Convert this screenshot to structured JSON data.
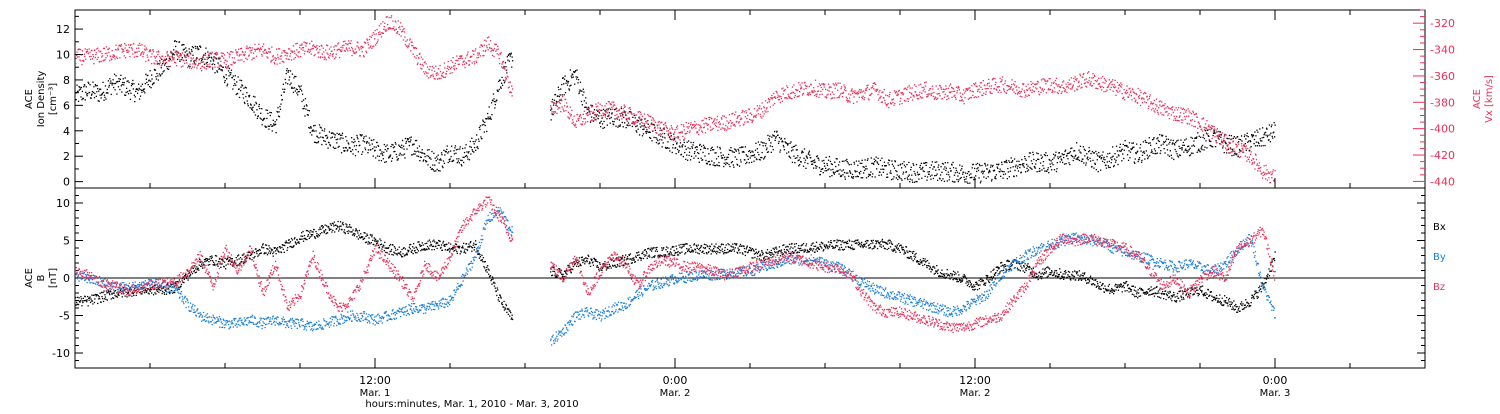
{
  "figure": {
    "xlabel": "hours:minutes, Mar.  1, 2010 - Mar.  3, 2010",
    "x_ticks": [
      {
        "time": "12:00",
        "date": "Mar. 1",
        "hours": 36
      },
      {
        "time": "0:00",
        "date": "Mar. 2",
        "hours": 48
      },
      {
        "time": "12:00",
        "date": "Mar. 2",
        "hours": 60
      },
      {
        "time": "0:00",
        "date": "Mar. 3",
        "hours": 72
      }
    ]
  },
  "colors": {
    "black": "#000000",
    "blue": "#1a7fd8",
    "pink": "#e8305a",
    "frame": "#000000"
  },
  "chart_data": [
    {
      "type": "scatter",
      "panel": "top",
      "title": "",
      "x_unit": "hours since Feb. 28, 2010 0:00 UT",
      "xlim": [
        24,
        78
      ],
      "left_axis": {
        "label_lines": [
          "ACE",
          "Ion Density",
          "[cm⁻³]"
        ],
        "ylim": [
          -0.5,
          13.5
        ],
        "ticks": [
          0,
          2,
          4,
          6,
          8,
          10,
          12
        ]
      },
      "right_axis": {
        "label_lines": [
          "ACE",
          "Vx [km/s]"
        ],
        "ylim": [
          -445,
          -310
        ],
        "ticks": [
          -320,
          -340,
          -360,
          -380,
          -400,
          -420,
          -440
        ]
      },
      "series": [
        {
          "name": "Ion Density",
          "axis": "left",
          "color": "#000000",
          "x": [
            24,
            24.5,
            25,
            25.5,
            26,
            26.5,
            27,
            27.5,
            28,
            28.5,
            29,
            29.5,
            30,
            30.5,
            31,
            31.5,
            32,
            32.5,
            33,
            33.5,
            34,
            34.5,
            35,
            35.5,
            36,
            36.5,
            37,
            37.5,
            38,
            38.5,
            39,
            39.5,
            40,
            40.5,
            41,
            41.5,
            42,
            42.5,
            43,
            43.5,
            44,
            44.5,
            45,
            45.5,
            46,
            46.5,
            47,
            47.5,
            48,
            48.5,
            49,
            49.5,
            50,
            50.5,
            51,
            51.5,
            52,
            52.5,
            53,
            53.5,
            54,
            54.5,
            55,
            55.5,
            56,
            56.5,
            57,
            57.5,
            58,
            58.5,
            59,
            59.5,
            60,
            60.5,
            61,
            61.5,
            62,
            62.5,
            63,
            63.5,
            64,
            64.5,
            65,
            65.5,
            66,
            66.5,
            67,
            67.5,
            68,
            68.5,
            69,
            69.5,
            70,
            70.5,
            71,
            71.5,
            72
          ],
          "values": [
            6.8,
            7.2,
            7.0,
            7.8,
            7.5,
            7.0,
            8.2,
            9.0,
            10.5,
            9.8,
            10.2,
            9.5,
            8.5,
            7.5,
            6.5,
            5.2,
            4.5,
            8.5,
            7.0,
            4.0,
            3.5,
            3.2,
            2.8,
            3.0,
            2.5,
            2.2,
            2.5,
            3.0,
            2.0,
            1.5,
            2.5,
            2.0,
            3.0,
            5.0,
            8.0,
            10.0,
            null,
            null,
            5.5,
            7.5,
            8.5,
            5.5,
            5.0,
            5.2,
            5.0,
            4.5,
            4.0,
            3.5,
            3.0,
            2.5,
            2.3,
            2.1,
            2.0,
            1.9,
            2.2,
            2.5,
            3.5,
            2.5,
            2.0,
            1.5,
            1.3,
            1.1,
            1.0,
            1.1,
            1.2,
            1.0,
            0.9,
            0.8,
            0.8,
            0.9,
            0.8,
            0.7,
            0.7,
            0.8,
            0.9,
            1.2,
            1.5,
            1.6,
            1.5,
            1.8,
            2.5,
            2.0,
            1.5,
            2.0,
            2.5,
            2.2,
            2.8,
            3.0,
            2.5,
            2.8,
            3.2,
            3.5,
            3.0,
            2.8,
            3.2,
            3.5,
            4.0
          ]
        },
        {
          "name": "Vx",
          "axis": "right",
          "color": "#e8305a",
          "x": [
            24,
            24.5,
            25,
            25.5,
            26,
            26.5,
            27,
            27.5,
            28,
            28.5,
            29,
            29.5,
            30,
            30.5,
            31,
            31.5,
            32,
            32.5,
            33,
            33.5,
            34,
            34.5,
            35,
            35.5,
            36,
            36.5,
            37,
            37.5,
            38,
            38.5,
            39,
            39.5,
            40,
            40.5,
            41,
            41.5,
            42,
            42.5,
            43,
            43.5,
            44,
            44.5,
            45,
            45.5,
            46,
            46.5,
            47,
            47.5,
            48,
            48.5,
            49,
            49.5,
            50,
            50.5,
            51,
            51.5,
            52,
            52.5,
            53,
            53.5,
            54,
            54.5,
            55,
            55.5,
            56,
            56.5,
            57,
            57.5,
            58,
            58.5,
            59,
            59.5,
            60,
            60.5,
            61,
            61.5,
            62,
            62.5,
            63,
            63.5,
            64,
            64.5,
            65,
            65.5,
            66,
            66.5,
            67,
            67.5,
            68,
            68.5,
            69,
            69.5,
            70,
            70.5,
            71,
            71.5,
            72
          ],
          "values": [
            -345,
            -345,
            -344,
            -342,
            -340,
            -340,
            -345,
            -347,
            -346,
            -348,
            -350,
            -347,
            -348,
            -345,
            -342,
            -340,
            -345,
            -342,
            -340,
            -339,
            -342,
            -340,
            -338,
            -340,
            -330,
            -318,
            -325,
            -340,
            -355,
            -358,
            -352,
            -348,
            -345,
            -335,
            -345,
            -375,
            null,
            null,
            -385,
            -380,
            -395,
            -390,
            -385,
            -385,
            -388,
            -392,
            -395,
            -400,
            -404,
            -400,
            -398,
            -396,
            -395,
            -392,
            -390,
            -385,
            -375,
            -372,
            -370,
            -368,
            -372,
            -370,
            -375,
            -373,
            -370,
            -378,
            -375,
            -372,
            -370,
            -373,
            -371,
            -375,
            -370,
            -368,
            -366,
            -368,
            -370,
            -368,
            -366,
            -368,
            -365,
            -362,
            -365,
            -368,
            -372,
            -375,
            -380,
            -385,
            -388,
            -390,
            -395,
            -402,
            -410,
            -415,
            -420,
            -432,
            -437
          ]
        }
      ]
    },
    {
      "type": "scatter",
      "panel": "bottom",
      "title": "",
      "x_unit": "hours since Feb. 28, 2010 0:00 UT",
      "xlim": [
        24,
        78
      ],
      "left_axis": {
        "label_lines": [
          "ACE",
          "B",
          "[nT]"
        ],
        "ylim": [
          -12,
          12
        ],
        "ticks": [
          -10,
          -5,
          0,
          5,
          10
        ]
      },
      "zero_line": true,
      "legend_labels": [
        {
          "text": "Bx",
          "color": "#000000"
        },
        {
          "text": "By",
          "color": "#1a7fd8"
        },
        {
          "text": "Bz",
          "color": "#e8305a"
        }
      ],
      "legend_placement": "right",
      "series": [
        {
          "name": "Bx",
          "color": "#000000",
          "x": [
            24,
            24.5,
            25,
            25.5,
            26,
            26.5,
            27,
            27.5,
            28,
            28.5,
            29,
            29.5,
            30,
            30.5,
            31,
            31.5,
            32,
            32.5,
            33,
            33.5,
            34,
            34.5,
            35,
            35.5,
            36,
            36.5,
            37,
            37.5,
            38,
            38.5,
            39,
            39.5,
            40,
            40.5,
            41,
            41.5,
            42,
            42.5,
            43,
            43.5,
            44,
            44.5,
            45,
            45.5,
            46,
            46.5,
            47,
            47.5,
            48,
            48.5,
            49,
            49.5,
            50,
            50.5,
            51,
            51.5,
            52,
            52.5,
            53,
            53.5,
            54,
            54.5,
            55,
            55.5,
            56,
            56.5,
            57,
            57.5,
            58,
            58.5,
            59,
            59.5,
            60,
            60.5,
            61,
            61.5,
            62,
            62.5,
            63,
            63.5,
            64,
            64.5,
            65,
            65.5,
            66,
            66.5,
            67,
            67.5,
            68,
            68.5,
            69,
            69.5,
            70,
            70.5,
            71,
            71.5,
            72
          ],
          "values": [
            -3.0,
            -3.0,
            -2.5,
            -2.0,
            -1.8,
            -1.5,
            -1.5,
            -1.5,
            -1.2,
            0.5,
            2.0,
            2.5,
            2.0,
            2.5,
            3.0,
            4.0,
            3.5,
            4.5,
            5.5,
            6.0,
            6.5,
            7.0,
            6.5,
            5.5,
            5.0,
            4.0,
            3.5,
            4.0,
            4.5,
            4.5,
            4.0,
            4.0,
            4.5,
            1.0,
            -3.0,
            -5.5,
            null,
            null,
            1.0,
            0.5,
            2.0,
            2.5,
            1.5,
            2.0,
            2.5,
            3.0,
            3.5,
            3.5,
            3.8,
            4.0,
            4.0,
            4.0,
            4.0,
            4.0,
            3.5,
            3.0,
            3.5,
            4.0,
            4.0,
            4.2,
            4.3,
            4.5,
            4.5,
            4.5,
            4.6,
            4.5,
            4.0,
            3.0,
            2.0,
            1.0,
            0.5,
            0.0,
            -1.0,
            0.0,
            1.5,
            2.0,
            1.5,
            0.5,
            1.0,
            0.5,
            0.5,
            0.0,
            -1.0,
            -1.5,
            -1.0,
            -2.0,
            -1.5,
            -2.0,
            -2.5,
            -2.0,
            -1.5,
            -2.5,
            -3.0,
            -4.0,
            -3.0,
            -1.0,
            3.0
          ]
        },
        {
          "name": "By",
          "color": "#1a7fd8",
          "x": [
            24,
            24.5,
            25,
            25.5,
            26,
            26.5,
            27,
            27.5,
            28,
            28.5,
            29,
            29.5,
            30,
            30.5,
            31,
            31.5,
            32,
            32.5,
            33,
            33.5,
            34,
            34.5,
            35,
            35.5,
            36,
            36.5,
            37,
            37.5,
            38,
            38.5,
            39,
            39.5,
            40,
            40.5,
            41,
            41.5,
            42,
            42.5,
            43,
            43.5,
            44,
            44.5,
            45,
            45.5,
            46,
            46.5,
            47,
            47.5,
            48,
            48.5,
            49,
            49.5,
            50,
            50.5,
            51,
            51.5,
            52,
            52.5,
            53,
            53.5,
            54,
            54.5,
            55,
            55.5,
            56,
            56.5,
            57,
            57.5,
            58,
            58.5,
            59,
            59.5,
            60,
            60.5,
            61,
            61.5,
            62,
            62.5,
            63,
            63.5,
            64,
            64.5,
            65,
            65.5,
            66,
            66.5,
            67,
            67.5,
            68,
            68.5,
            69,
            69.5,
            70,
            70.5,
            71,
            71.5,
            72
          ],
          "values": [
            0.5,
            0.0,
            -0.5,
            -1.0,
            -1.2,
            -1.0,
            -0.5,
            -1.0,
            -1.5,
            -3.5,
            -5.0,
            -5.5,
            -6.0,
            -6.0,
            -5.5,
            -6.0,
            -5.5,
            -6.0,
            -6.0,
            -6.5,
            -6.0,
            -5.5,
            -5.0,
            -5.0,
            -5.5,
            -5.0,
            -4.5,
            -4.0,
            -4.0,
            -3.5,
            -3.0,
            0.0,
            3.0,
            8.0,
            9.0,
            6.0,
            null,
            null,
            -8.5,
            -7.0,
            -5.0,
            -4.5,
            -5.0,
            -4.0,
            -3.5,
            -2.0,
            -1.0,
            -0.5,
            0.0,
            0.2,
            0.5,
            0.5,
            0.6,
            0.8,
            1.0,
            1.5,
            2.0,
            2.5,
            2.5,
            2.5,
            2.0,
            1.5,
            0.5,
            -0.5,
            -1.5,
            -2.0,
            -2.5,
            -3.0,
            -3.5,
            -4.0,
            -4.5,
            -4.0,
            -3.0,
            -2.0,
            0.5,
            2.0,
            3.0,
            4.0,
            4.5,
            5.0,
            5.5,
            5.0,
            5.0,
            4.0,
            3.5,
            3.0,
            2.5,
            2.0,
            1.5,
            2.0,
            1.5,
            1.0,
            2.0,
            4.0,
            5.5,
            -1.0,
            -5.0
          ]
        },
        {
          "name": "Bz",
          "color": "#e8305a",
          "x": [
            24,
            24.5,
            25,
            25.5,
            26,
            26.5,
            27,
            27.5,
            28,
            28.5,
            29,
            29.5,
            30,
            30.5,
            31,
            31.5,
            32,
            32.5,
            33,
            33.5,
            34,
            34.5,
            35,
            35.5,
            36,
            36.5,
            37,
            37.5,
            38,
            38.5,
            39,
            39.5,
            40,
            40.5,
            41,
            41.5,
            42,
            42.5,
            43,
            43.5,
            44,
            44.5,
            45,
            45.5,
            46,
            46.5,
            47,
            47.5,
            48,
            48.5,
            49,
            49.5,
            50,
            50.5,
            51,
            51.5,
            52,
            52.5,
            53,
            53.5,
            54,
            54.5,
            55,
            55.5,
            56,
            56.5,
            57,
            57.5,
            58,
            58.5,
            59,
            59.5,
            60,
            60.5,
            61,
            61.5,
            62,
            62.5,
            63,
            63.5,
            64,
            64.5,
            65,
            65.5,
            66,
            66.5,
            67,
            67.5,
            68,
            68.5,
            69,
            69.5,
            70,
            70.5,
            71,
            71.5,
            72
          ],
          "values": [
            1.0,
            0.5,
            -0.5,
            -1.0,
            -1.5,
            -1.5,
            -1.0,
            -0.5,
            -0.5,
            1.0,
            3.0,
            -1.0,
            4.0,
            1.0,
            4.0,
            -2.0,
            2.0,
            -4.0,
            -2.0,
            3.0,
            -1.0,
            -4.0,
            -3.0,
            0.0,
            4.0,
            2.0,
            0.0,
            -3.0,
            2.0,
            0.0,
            3.0,
            7.0,
            9.0,
            10.5,
            8.0,
            5.0,
            null,
            null,
            2.0,
            0.0,
            3.0,
            -2.0,
            1.0,
            3.0,
            2.0,
            -1.0,
            1.5,
            2.5,
            2.0,
            1.5,
            1.5,
            1.0,
            0.5,
            1.0,
            1.5,
            2.0,
            2.5,
            3.0,
            2.5,
            2.0,
            1.5,
            1.5,
            0.5,
            -2.0,
            -4.0,
            -4.5,
            -4.5,
            -5.0,
            -5.5,
            -6.0,
            -6.5,
            -6.5,
            -6.0,
            -5.5,
            -5.0,
            -3.0,
            -1.0,
            2.0,
            4.0,
            5.5,
            5.0,
            5.5,
            5.0,
            4.5,
            4.0,
            3.0,
            1.0,
            -1.0,
            0.0,
            -2.0,
            0.0,
            1.0,
            0.0,
            4.0,
            5.0,
            6.5,
            0.0
          ]
        }
      ]
    }
  ]
}
